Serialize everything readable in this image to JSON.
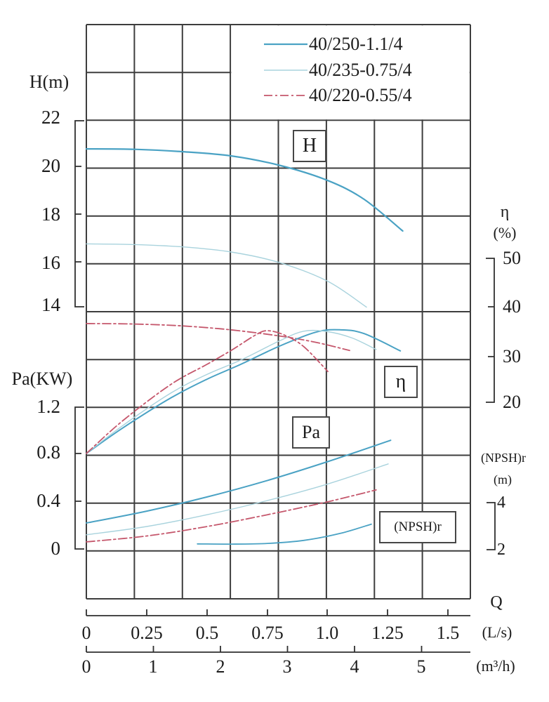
{
  "labels": {
    "h_axis_title": "H(m)",
    "pa_axis_title": "Pa(KW)",
    "eta_axis_title": "η",
    "eta_axis_unit": "(%)",
    "npshr_axis_title": "(NPSH)r",
    "npshr_axis_unit": "(m)",
    "q_axis_title": "Q",
    "q_unit_ls": "(L/s)",
    "q_unit_m3h": "(m³/h)",
    "box_h": "H",
    "box_eta": "η",
    "box_pa": "Pa",
    "box_npshr": "(NPSH)r"
  },
  "ticks": {
    "h": [
      "22",
      "20",
      "18",
      "16",
      "14"
    ],
    "pa": [
      "1.2",
      "0.8",
      "0.4",
      "0"
    ],
    "eta": [
      "50",
      "40",
      "30",
      "20"
    ],
    "npshr": [
      "4",
      "2"
    ],
    "ls": [
      "0",
      "0.25",
      "0.5",
      "0.75",
      "1.0",
      "1.25",
      "1.5"
    ],
    "m3h": [
      "0",
      "1",
      "2",
      "3",
      "4",
      "5"
    ]
  },
  "legend": {
    "items": [
      {
        "label": "40/250-1.1/4",
        "color": "#4aa2c4",
        "dash": "",
        "width": 2.2
      },
      {
        "label": "40/235-0.75/4",
        "color": "#a9d3dd",
        "dash": "",
        "width": 1.4
      },
      {
        "label": "40/220-0.55/4",
        "color": "#c5576c",
        "dash": "12 4 3 4",
        "width": 1.8
      }
    ]
  },
  "colors": {
    "grid": "#3d3d3d",
    "axis": "#2f2f2f",
    "text": "#1c1c1c",
    "curve_250": "#4aa2c4",
    "curve_235": "#a9d3dd",
    "curve_220": "#c5576c"
  },
  "chart_data": {
    "type": "line",
    "title": "",
    "grid": true,
    "legend_position": "top-right",
    "x_axis": {
      "label": "Q",
      "unit_primary": "L/s",
      "unit_secondary": "m³/h",
      "range_ls": [
        0,
        1.5
      ],
      "ticks_ls": [
        0,
        0.25,
        0.5,
        0.75,
        1.0,
        1.25,
        1.5
      ],
      "range_m3h": [
        0,
        5
      ],
      "ticks_m3h": [
        0,
        1,
        2,
        3,
        4,
        5
      ]
    },
    "y_axes": [
      {
        "id": "H",
        "label": "H(m)",
        "side": "left",
        "ticks": [
          22,
          20,
          18,
          16,
          14
        ]
      },
      {
        "id": "Pa",
        "label": "Pa(KW)",
        "side": "left",
        "ticks": [
          1.2,
          0.8,
          0.4,
          0
        ]
      },
      {
        "id": "eta",
        "label": "η(%)",
        "side": "right",
        "ticks": [
          50,
          40,
          30,
          20
        ]
      },
      {
        "id": "NPSHr",
        "label": "(NPSH)r(m)",
        "side": "right",
        "ticks": [
          4,
          2
        ]
      }
    ],
    "curves": [
      {
        "name": "40/250-1.1/4",
        "axis": "H",
        "color": "#4aa2c4",
        "width": 2.2,
        "dash": "",
        "points": [
          [
            0,
            20.8
          ],
          [
            0.2,
            20.78
          ],
          [
            0.4,
            20.68
          ],
          [
            0.6,
            20.5
          ],
          [
            0.8,
            20.1
          ],
          [
            1.0,
            19.45
          ],
          [
            1.15,
            18.65
          ],
          [
            1.31,
            17.3
          ]
        ]
      },
      {
        "name": "40/235-0.75/4",
        "axis": "H",
        "color": "#a9d3dd",
        "width": 1.4,
        "dash": "",
        "points": [
          [
            0,
            16.75
          ],
          [
            0.2,
            16.72
          ],
          [
            0.4,
            16.62
          ],
          [
            0.6,
            16.4
          ],
          [
            0.8,
            15.95
          ],
          [
            1.0,
            15.15
          ],
          [
            1.16,
            14.05
          ]
        ]
      },
      {
        "name": "40/220-0.55/4",
        "axis": "H",
        "color": "#c5576c",
        "width": 1.8,
        "dash": "12 4 3 4",
        "points": [
          [
            0,
            13.35
          ],
          [
            0.2,
            13.33
          ],
          [
            0.4,
            13.25
          ],
          [
            0.6,
            13.08
          ],
          [
            0.8,
            12.82
          ],
          [
            0.95,
            12.55
          ],
          [
            1.09,
            12.2
          ]
        ]
      },
      {
        "name": "40/250-1.1/4",
        "axis": "eta",
        "color": "#4aa2c4",
        "width": 2.0,
        "dash": "",
        "points": [
          [
            0,
            9.3
          ],
          [
            0.15,
            14.6
          ],
          [
            0.35,
            20.9
          ],
          [
            0.5,
            24.8
          ],
          [
            0.64,
            27.9
          ],
          [
            0.8,
            31.7
          ],
          [
            0.95,
            34.6
          ],
          [
            1.05,
            35.1
          ],
          [
            1.15,
            34.3
          ],
          [
            1.3,
            30.7
          ]
        ]
      },
      {
        "name": "40/235-0.75/4",
        "axis": "eta",
        "color": "#a9d3dd",
        "width": 1.4,
        "dash": "",
        "points": [
          [
            0,
            9.3
          ],
          [
            0.15,
            15.1
          ],
          [
            0.35,
            21.9
          ],
          [
            0.5,
            25.8
          ],
          [
            0.64,
            28.8
          ],
          [
            0.8,
            32.8
          ],
          [
            0.9,
            34.8
          ],
          [
            1.0,
            34.7
          ],
          [
            1.1,
            33.4
          ],
          [
            1.2,
            31.0
          ]
        ]
      },
      {
        "name": "40/220-0.55/4",
        "axis": "eta",
        "color": "#c5576c",
        "width": 1.8,
        "dash": "12 4 3 4",
        "points": [
          [
            0,
            9.3
          ],
          [
            0.15,
            16.1
          ],
          [
            0.35,
            23.7
          ],
          [
            0.5,
            27.9
          ],
          [
            0.6,
            30.8
          ],
          [
            0.7,
            34.0
          ],
          [
            0.75,
            34.9
          ],
          [
            0.82,
            34.0
          ],
          [
            0.9,
            31.6
          ],
          [
            1.0,
            26.4
          ]
        ]
      },
      {
        "name": "40/250-1.1/4",
        "axis": "Pa",
        "color": "#4aa2c4",
        "width": 2.0,
        "dash": "",
        "points": [
          [
            0,
            0.22
          ],
          [
            0.25,
            0.32
          ],
          [
            0.5,
            0.44
          ],
          [
            0.75,
            0.58
          ],
          [
            1.0,
            0.74
          ],
          [
            1.26,
            0.92
          ]
        ]
      },
      {
        "name": "40/235-0.75/4",
        "axis": "Pa",
        "color": "#a9d3dd",
        "width": 1.4,
        "dash": "",
        "points": [
          [
            0,
            0.12
          ],
          [
            0.25,
            0.19
          ],
          [
            0.5,
            0.29
          ],
          [
            0.75,
            0.41
          ],
          [
            1.0,
            0.55
          ],
          [
            1.25,
            0.72
          ]
        ]
      },
      {
        "name": "40/220-0.55/4",
        "axis": "Pa",
        "color": "#c5576c",
        "width": 1.8,
        "dash": "12 4 3 4",
        "points": [
          [
            0,
            0.06
          ],
          [
            0.25,
            0.11
          ],
          [
            0.5,
            0.19
          ],
          [
            0.75,
            0.29
          ],
          [
            1.0,
            0.4
          ],
          [
            1.2,
            0.5
          ]
        ]
      },
      {
        "name": "40/250-1.1/4",
        "axis": "NPSHr",
        "color": "#4aa2c4",
        "width": 1.8,
        "dash": "",
        "points": [
          [
            0.46,
            2.25
          ],
          [
            0.6,
            2.24
          ],
          [
            0.75,
            2.27
          ],
          [
            0.9,
            2.4
          ],
          [
            1.05,
            2.7
          ],
          [
            1.18,
            3.1
          ]
        ]
      }
    ]
  }
}
